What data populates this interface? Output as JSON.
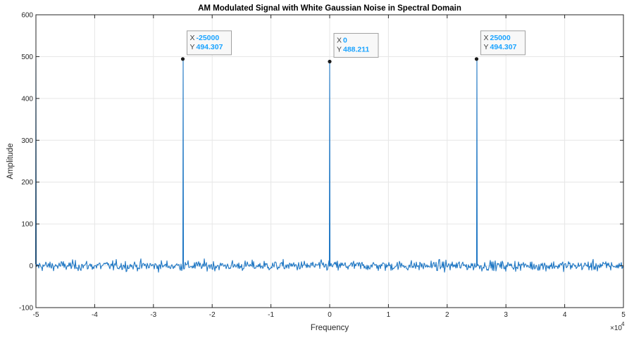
{
  "chart_data": {
    "type": "line",
    "title": "AM Modulated Signal with White Gaussian Noise in Spectral Domain",
    "xlabel": "Frequency",
    "ylabel": "Amplitude",
    "x_exponent_label": "×10",
    "x_exponent_power": "4",
    "xlim": [
      -50000,
      50000
    ],
    "ylim": [
      -100,
      600
    ],
    "xticks": [
      -50000,
      -40000,
      -30000,
      -20000,
      -10000,
      0,
      10000,
      20000,
      30000,
      40000,
      50000
    ],
    "xtick_labels": [
      "-5",
      "-4",
      "-3",
      "-2",
      "-1",
      "0",
      "1",
      "2",
      "3",
      "4",
      "5"
    ],
    "yticks": [
      -100,
      0,
      100,
      200,
      300,
      400,
      500,
      600
    ],
    "ytick_labels": [
      "-100",
      "0",
      "100",
      "200",
      "300",
      "400",
      "500",
      "600"
    ],
    "grid": true,
    "series": [
      {
        "noise_level": 0,
        "noise_std": 6,
        "peaks": [
          {
            "x": -50000,
            "y": 494.307
          },
          {
            "x": -25000,
            "y": 494.307
          },
          {
            "x": 0,
            "y": 488.211
          },
          {
            "x": 25000,
            "y": 494.307
          }
        ]
      }
    ],
    "datatips": [
      {
        "x_label": "X",
        "x_value": "-25000",
        "y_label": "Y",
        "y_value": "494.307",
        "x": -25000,
        "y": 494.307
      },
      {
        "x_label": "X",
        "x_value": "0",
        "y_label": "Y",
        "y_value": "488.211",
        "x": 0,
        "y": 488.211
      },
      {
        "x_label": "X",
        "x_value": "25000",
        "y_label": "Y",
        "y_value": "494.307",
        "x": 25000,
        "y": 494.307
      }
    ],
    "colors": {
      "line": "#1f77c4",
      "tip_value": "#1aa3ff",
      "grid": "#e6e6e6",
      "axis": "#262626"
    }
  }
}
